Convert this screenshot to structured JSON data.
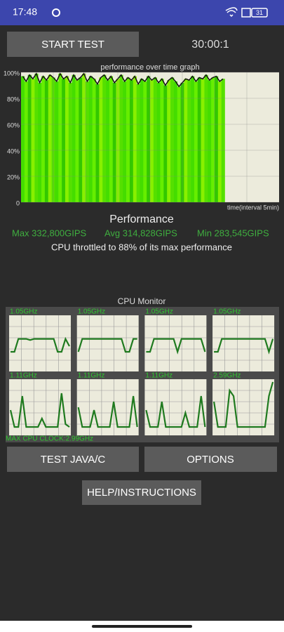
{
  "status_bar": {
    "time": "17:48",
    "battery": "31"
  },
  "start_button": "START TEST",
  "timer": "30:00:1",
  "chart_data": {
    "type": "area",
    "title": "performance over time graph",
    "x_label": "time(interval 5min)",
    "ylim": [
      0,
      100
    ],
    "yticks": [
      {
        "value": 0,
        "label": "0"
      },
      {
        "value": 20,
        "label": "20%"
      },
      {
        "value": 40,
        "label": "40%"
      },
      {
        "value": 60,
        "label": "60%"
      },
      {
        "value": 80,
        "label": "80%"
      },
      {
        "value": 100,
        "label": "100%"
      }
    ],
    "grid": true,
    "color": "#111111",
    "fill_colors": [
      "#44dd00",
      "#66ee00",
      "#33c800",
      "#88f000",
      "#55e000"
    ],
    "values": [
      97,
      93,
      98,
      95,
      99,
      92,
      97,
      94,
      98,
      96,
      93,
      99,
      95,
      97,
      92,
      98,
      94,
      96,
      99,
      93,
      97,
      95,
      91,
      96,
      98,
      94,
      97,
      92,
      95,
      98,
      93,
      96,
      94,
      97,
      91,
      95,
      93,
      97,
      94,
      96,
      92,
      95,
      90,
      94,
      96,
      93,
      89,
      92,
      95,
      94,
      97,
      93,
      96,
      95,
      98,
      94,
      96,
      97,
      93,
      95
    ]
  },
  "performance": {
    "title": "Performance",
    "max": "Max 332,800GIPS",
    "avg": "Avg 314,828GIPS",
    "min": "Min 283,545GIPS",
    "throttle": "CPU throttled to 88% of its max performance"
  },
  "cpu_monitor": {
    "title": "CPU Monitor",
    "max_clock": "MAX CPU CLOCK:2.99GHz",
    "ylim": [
      0,
      100
    ],
    "color": "#1f7a1f",
    "cores": [
      {
        "label": "1.05GHz",
        "values": [
          35,
          35,
          58,
          58,
          58,
          56,
          58,
          58,
          58,
          58,
          58,
          58,
          35,
          35,
          58,
          45
        ]
      },
      {
        "label": "1.05GHz",
        "values": [
          35,
          58,
          58,
          58,
          58,
          58,
          58,
          58,
          58,
          58,
          58,
          58,
          35,
          35,
          58,
          58
        ]
      },
      {
        "label": "1.05GHz",
        "values": [
          35,
          35,
          58,
          58,
          58,
          58,
          58,
          58,
          35,
          58,
          58,
          58,
          58,
          58,
          58,
          35
        ]
      },
      {
        "label": "1.05GHz",
        "values": [
          35,
          35,
          58,
          58,
          58,
          58,
          58,
          58,
          58,
          58,
          58,
          58,
          58,
          58,
          35,
          58
        ]
      },
      {
        "label": "1.11GHz",
        "values": [
          45,
          15,
          15,
          70,
          15,
          15,
          15,
          15,
          30,
          15,
          15,
          15,
          15,
          75,
          20,
          15
        ]
      },
      {
        "label": "1.11GHz",
        "values": [
          50,
          15,
          15,
          15,
          45,
          15,
          15,
          15,
          15,
          60,
          15,
          15,
          15,
          15,
          70,
          15
        ]
      },
      {
        "label": "1.11GHz",
        "values": [
          45,
          15,
          15,
          15,
          60,
          15,
          15,
          15,
          15,
          15,
          40,
          15,
          15,
          15,
          70,
          15
        ]
      },
      {
        "label": "2.59GHz",
        "values": [
          60,
          15,
          15,
          15,
          80,
          70,
          15,
          15,
          15,
          15,
          15,
          15,
          15,
          15,
          70,
          95
        ]
      }
    ]
  },
  "buttons": {
    "test": "TEST JAVA/C",
    "options": "OPTIONS",
    "help": "HELP/INSTRUCTIONS"
  }
}
